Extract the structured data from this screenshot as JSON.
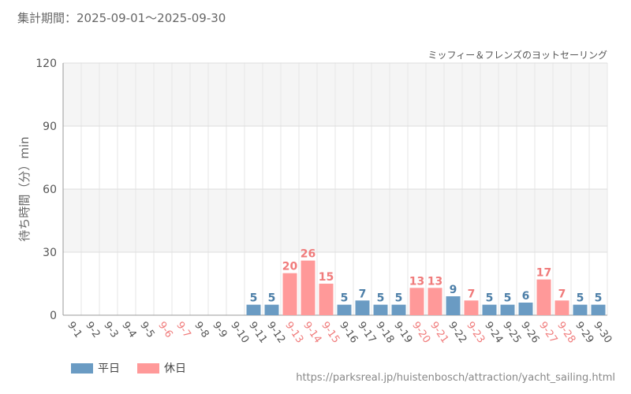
{
  "header": {
    "period": "集計期間：2025-09-01～2025-09-30"
  },
  "footer": {
    "url": "https://parksreal.jp/huistenbosch/attraction/yacht_sailing.html"
  },
  "colors": {
    "weekday": "#6a9bc3",
    "holiday": "#ff9999",
    "weekday_text": "#4d7fa8",
    "holiday_text": "#f07b7b",
    "normal_tick": "#555555"
  },
  "chart_data": {
    "type": "bar",
    "title": "ミッフィー＆フレンズのヨットセーリング",
    "ylabel": "待ち時間（分）min",
    "xlabel": "",
    "ylim": [
      0,
      120
    ],
    "yticks": [
      0,
      30,
      60,
      90,
      120
    ],
    "legend": [
      "平日",
      "休日"
    ],
    "legend_position": "bottom-left",
    "grid": true,
    "categories": [
      "9-1",
      "9-2",
      "9-3",
      "9-4",
      "9-5",
      "9-6",
      "9-7",
      "9-8",
      "9-9",
      "9-10",
      "9-11",
      "9-12",
      "9-13",
      "9-14",
      "9-15",
      "9-16",
      "9-17",
      "9-18",
      "9-19",
      "9-20",
      "9-21",
      "9-22",
      "9-23",
      "9-24",
      "9-25",
      "9-26",
      "9-27",
      "9-28",
      "9-29",
      "9-30"
    ],
    "day_types": [
      "weekday",
      "weekday",
      "weekday",
      "weekday",
      "weekday",
      "holiday",
      "holiday",
      "weekday",
      "weekday",
      "weekday",
      "weekday",
      "weekday",
      "holiday",
      "holiday",
      "holiday",
      "weekday",
      "weekday",
      "weekday",
      "weekday",
      "holiday",
      "holiday",
      "weekday",
      "holiday",
      "weekday",
      "weekday",
      "weekday",
      "holiday",
      "holiday",
      "weekday",
      "weekday"
    ],
    "values": [
      null,
      null,
      null,
      null,
      null,
      null,
      null,
      null,
      null,
      null,
      5,
      5,
      20,
      26,
      15,
      5,
      7,
      5,
      5,
      13,
      13,
      9,
      7,
      5,
      5,
      6,
      17,
      7,
      5,
      5
    ]
  }
}
